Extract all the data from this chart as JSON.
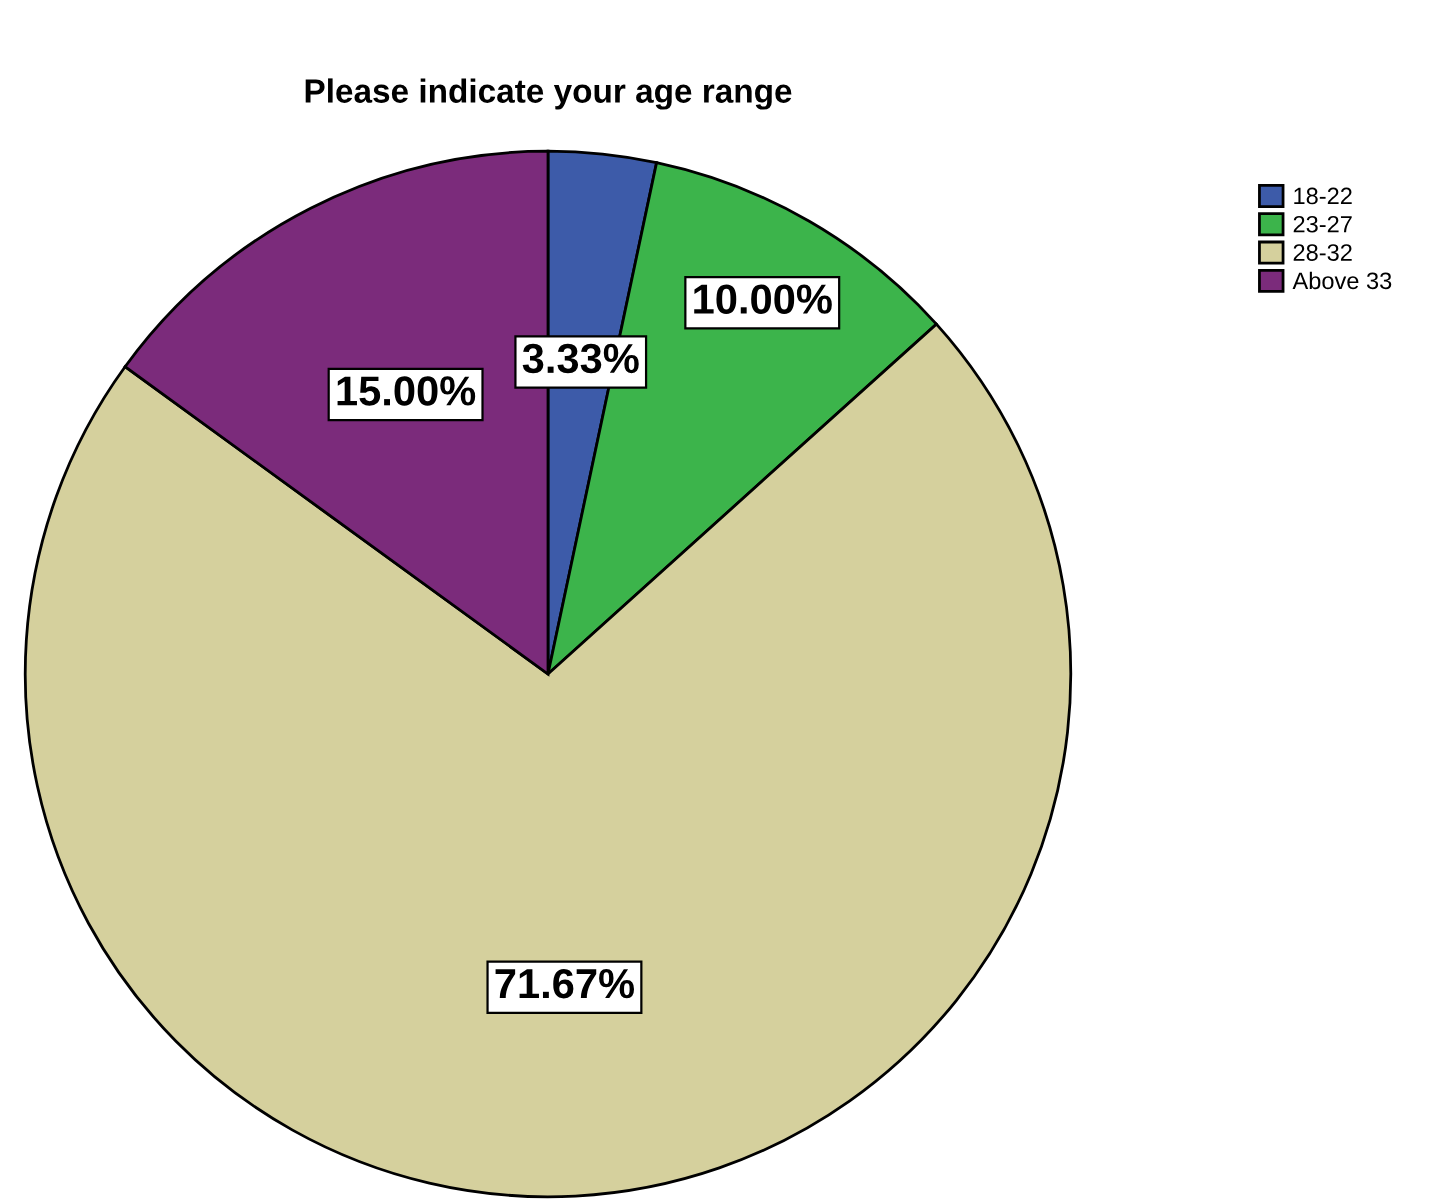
{
  "chart_data": {
    "type": "pie",
    "title": "Please indicate your age range",
    "categories": [
      "18-22",
      "23-27",
      "28-32",
      "Above 33"
    ],
    "values": [
      3.33,
      10.0,
      71.67,
      15.0
    ],
    "value_labels": [
      "3.33%",
      "10.00%",
      "71.67%",
      "15.00%"
    ],
    "colors": [
      "#3d5ba9",
      "#3cb44b",
      "#d5d09d",
      "#7b2b7b"
    ],
    "legend": "top right"
  }
}
